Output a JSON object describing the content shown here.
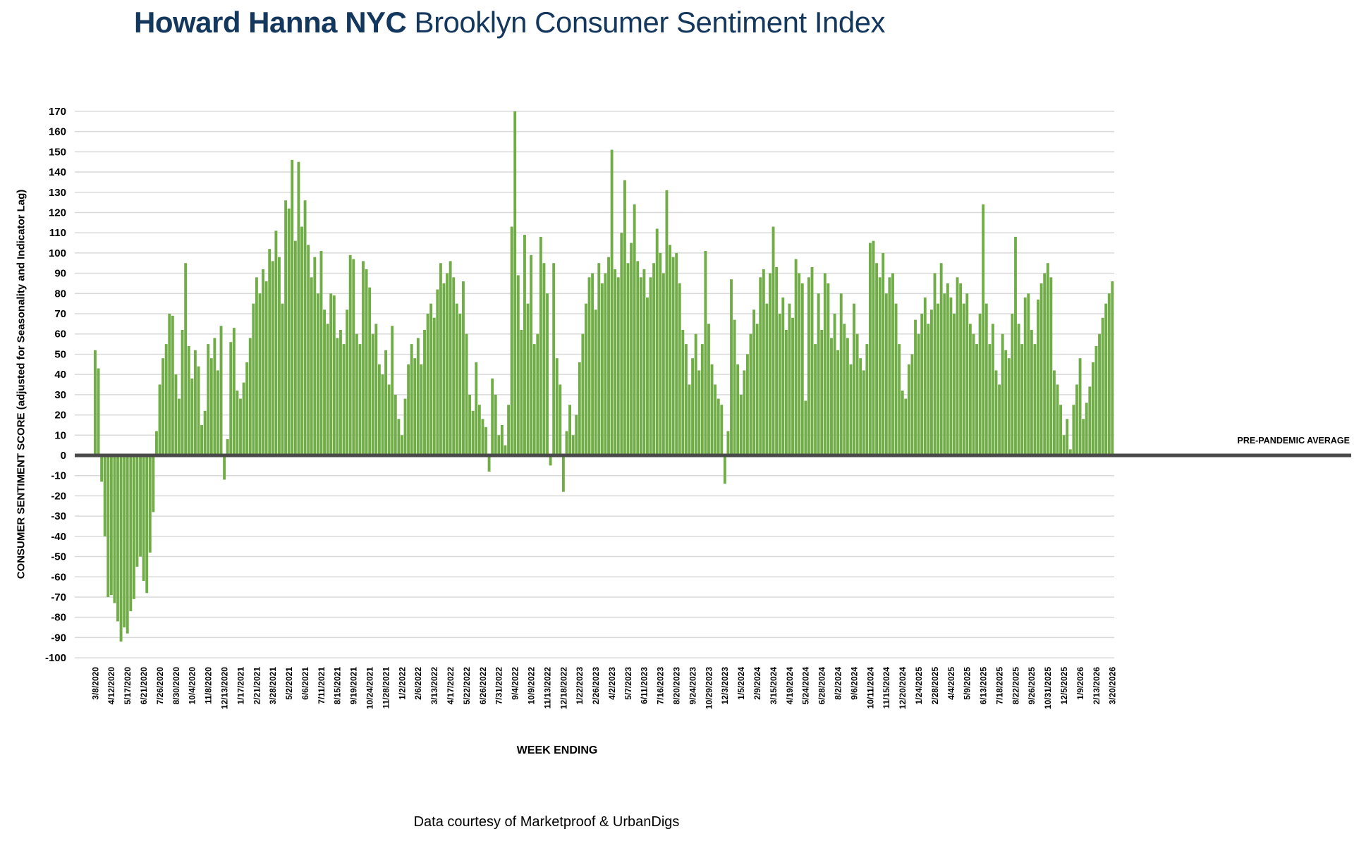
{
  "title": {
    "brand": "Howard Hanna NYC",
    "rest": " Brooklyn Consumer Sentiment Index"
  },
  "footer": "Data courtesy of Marketproof & UrbanDigs",
  "chart_data": {
    "type": "bar",
    "title": "Howard Hanna NYC Brooklyn Consumer Sentiment Index",
    "xlabel": "WEEK ENDING",
    "ylabel": "CONSUMER SENTIMENT SCORE (adjusted for Seasonality and Indicator Lag)",
    "ylim": [
      -100,
      170
    ],
    "ytick_step": 10,
    "grid": true,
    "legend": "none",
    "bar_color": "#70AD47",
    "grid_color": "#D9D9D9",
    "zero_line_color": "#4A4A4A",
    "reference_line": {
      "value": 0,
      "label": "PRE-PANDEMIC AVERAGE"
    },
    "x_tick_every": 5,
    "x_tick_labels": [
      "3/8/2020",
      "4/12/2020",
      "5/17/2020",
      "6/21/2020",
      "7/26/2020",
      "8/30/2020",
      "10/4/2020",
      "11/8/2020",
      "12/13/2020",
      "1/17/2021",
      "2/21/2021",
      "3/28/2021",
      "5/2/2021",
      "6/6/2021",
      "7/11/2021",
      "8/15/2021",
      "9/19/2021",
      "10/24/2021",
      "11/28/2021",
      "1/2/2022",
      "2/6/2022",
      "3/13/2022",
      "4/17/2022",
      "5/22/2022",
      "6/26/2022",
      "7/31/2022",
      "9/4/2022",
      "10/9/2022",
      "11/13/2022",
      "12/18/2022",
      "1/22/2023",
      "2/26/2023",
      "4/2/2023",
      "5/7/2023",
      "6/11/2023",
      "7/16/2023",
      "8/20/2023",
      "9/24/2023",
      "10/29/2023",
      "12/3/2023",
      "1/5/2024",
      "2/9/2024",
      "3/15/2024",
      "4/19/2024",
      "5/24/2024",
      "6/28/2024",
      "8/2/2024",
      "9/6/2024",
      "10/11/2024",
      "11/15/2024",
      "12/20/2024",
      "1/24/2025",
      "2/28/2025",
      "4/4/2025",
      "5/9/2025",
      "6/13/2025",
      "7/18/2025",
      "8/22/2025",
      "9/26/2025",
      "10/31/2025",
      "12/5/2025",
      "1/9/2026",
      "2/13/2026",
      "3/20/2026"
    ],
    "weekly_values": [
      52,
      43,
      -13,
      -40,
      -70,
      -69,
      -73,
      -82,
      -92,
      -85,
      -88,
      -77,
      -71,
      -55,
      -50,
      -62,
      -68,
      -48,
      -28,
      12,
      35,
      48,
      55,
      70,
      69,
      40,
      28,
      62,
      95,
      54,
      38,
      52,
      44,
      15,
      22,
      55,
      48,
      58,
      42,
      64,
      -12,
      8,
      56,
      63,
      32,
      28,
      36,
      46,
      58,
      75,
      88,
      80,
      92,
      86,
      102,
      96,
      111,
      98,
      75,
      126,
      122,
      146,
      106,
      145,
      113,
      126,
      104,
      88,
      98,
      80,
      101,
      72,
      65,
      80,
      79,
      58,
      62,
      55,
      72,
      99,
      97,
      60,
      55,
      96,
      92,
      83,
      60,
      65,
      45,
      40,
      52,
      35,
      64,
      30,
      18,
      10,
      28,
      45,
      55,
      48,
      58,
      45,
      62,
      70,
      75,
      68,
      82,
      95,
      85,
      90,
      96,
      88,
      75,
      70,
      86,
      60,
      30,
      22,
      46,
      25,
      18,
      14,
      -8,
      38,
      30,
      10,
      15,
      5,
      25,
      113,
      170,
      89,
      62,
      109,
      75,
      99,
      55,
      60,
      108,
      95,
      80,
      -5,
      95,
      48,
      35,
      -18,
      12,
      25,
      10,
      20,
      46,
      60,
      75,
      88,
      90,
      72,
      95,
      85,
      90,
      98,
      151,
      92,
      88,
      110,
      136,
      95,
      105,
      124,
      96,
      88,
      92,
      78,
      88,
      95,
      112,
      100,
      90,
      131,
      104,
      98,
      100,
      85,
      62,
      55,
      35,
      48,
      60,
      42,
      55,
      101,
      65,
      45,
      35,
      28,
      25,
      -14,
      12,
      87,
      67,
      45,
      30,
      42,
      50,
      60,
      72,
      65,
      88,
      92,
      75,
      90,
      113,
      93,
      70,
      78,
      62,
      75,
      68,
      97,
      90,
      85,
      27,
      88,
      93,
      55,
      80,
      62,
      90,
      85,
      58,
      70,
      52,
      80,
      65,
      58,
      45,
      75,
      60,
      48,
      42,
      55,
      105,
      106,
      95,
      88,
      100,
      80,
      88,
      90,
      75,
      55,
      32,
      28,
      45,
      50,
      67,
      60,
      70,
      78,
      65,
      72,
      90,
      75,
      95,
      80,
      85,
      78,
      70,
      88,
      85,
      75,
      80,
      65,
      60,
      55,
      70,
      124,
      75,
      55,
      65,
      42,
      35,
      60,
      52,
      48,
      70,
      108,
      65,
      55,
      78,
      80,
      62,
      55,
      77,
      85,
      90,
      95,
      88,
      42,
      35,
      25,
      10,
      18,
      3,
      25,
      35,
      48,
      18,
      26,
      34,
      46,
      54,
      60,
      68,
      75,
      80,
      86
    ]
  }
}
